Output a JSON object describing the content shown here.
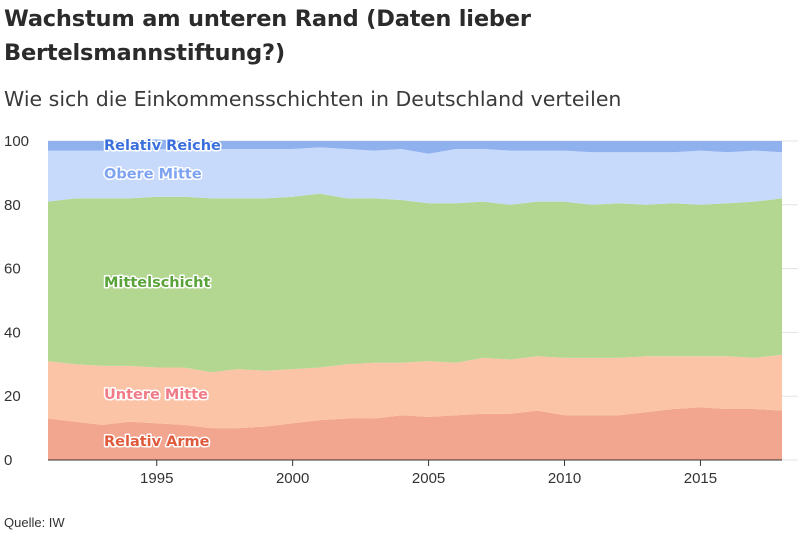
{
  "title": "Wachstum am unteren Rand  (Daten lieber Bertelsmannstiftung?)",
  "subtitle": "Wie sich die Einkommensschichten in Deutschland verteilen",
  "source": "Quelle: IW",
  "chart_data": {
    "type": "area",
    "stacked": true,
    "x": [
      1991,
      1992,
      1993,
      1994,
      1995,
      1996,
      1997,
      1998,
      1999,
      2000,
      2001,
      2002,
      2003,
      2004,
      2005,
      2006,
      2007,
      2008,
      2009,
      2010,
      2011,
      2012,
      2013,
      2014,
      2015,
      2016,
      2017,
      2018
    ],
    "xticks": [
      1995,
      2000,
      2005,
      2010,
      2015
    ],
    "ylim": [
      0,
      100
    ],
    "yticks": [
      0,
      20,
      40,
      60,
      80,
      100
    ],
    "grid": true,
    "series": [
      {
        "name": "Relativ Arme",
        "color": "#f2a68f",
        "label_color": "#e05a3c",
        "values": [
          13,
          12,
          11,
          12,
          11.5,
          11,
          10,
          10,
          10.5,
          11.5,
          12.5,
          13,
          13,
          14,
          13.5,
          14,
          14.5,
          14.5,
          15.5,
          14,
          14,
          14,
          15,
          16,
          16.5,
          16,
          16,
          15.5
        ]
      },
      {
        "name": "Untere Mitte",
        "color": "#fcc4a6",
        "label_color": "#f07a86",
        "values": [
          18,
          18,
          18.5,
          17.5,
          17.5,
          18,
          17.5,
          18.5,
          17.5,
          17,
          16.5,
          17,
          17.5,
          16.5,
          17.5,
          16.5,
          17.5,
          17,
          17,
          18,
          18,
          18,
          17.5,
          16.5,
          16,
          16.5,
          16,
          17.5
        ]
      },
      {
        "name": "Mittelschicht",
        "color": "#b3d691",
        "label_color": "#5aa33a",
        "values": [
          50,
          52,
          52.5,
          52.5,
          53.5,
          53.5,
          54.5,
          53.5,
          54,
          54,
          54.5,
          52,
          51.5,
          51,
          49.5,
          50,
          49,
          48.5,
          48.5,
          49,
          48,
          48.5,
          47.5,
          48,
          47.5,
          48,
          49,
          49
        ]
      },
      {
        "name": "Obere Mitte",
        "color": "#c8dafc",
        "label_color": "#7ea3f0",
        "values": [
          16,
          15,
          15,
          15.5,
          15,
          15,
          15.5,
          15.5,
          15.5,
          15,
          14.5,
          15.5,
          15,
          16,
          15.5,
          17,
          16.5,
          17,
          16,
          16,
          16.5,
          16,
          16.5,
          16,
          17,
          16,
          16,
          14.5
        ]
      },
      {
        "name": "Relativ Reiche",
        "color": "#8fb2ee",
        "label_color": "#3a6fdc",
        "values": [
          3,
          3,
          3,
          2.5,
          3,
          2.5,
          2.5,
          2.5,
          2.5,
          2.5,
          2,
          2.5,
          3,
          2.5,
          4,
          2.5,
          2.5,
          3,
          3,
          3,
          3.5,
          3.5,
          3.5,
          3.5,
          3,
          3.5,
          3,
          3.5
        ]
      }
    ]
  }
}
